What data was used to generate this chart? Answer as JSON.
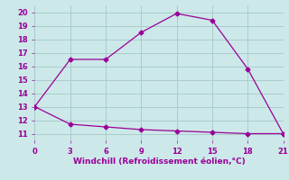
{
  "temp_x": [
    0,
    3,
    6,
    9,
    12,
    15,
    18,
    21
  ],
  "temp_y": [
    13,
    16.5,
    16.5,
    18.5,
    19.9,
    19.4,
    15.8,
    11.0
  ],
  "wind_x": [
    0,
    3,
    6,
    9,
    12,
    15,
    18,
    21
  ],
  "wind_y": [
    13,
    11.7,
    11.5,
    11.3,
    11.2,
    11.1,
    11.0,
    11.0
  ],
  "line_color": "#990099",
  "bg_color": "#cce8e8",
  "grid_color": "#aacccc",
  "xlabel": "Windchill (Refroidissement éolien,°C)",
  "xlim": [
    0,
    21
  ],
  "ylim": [
    10.5,
    20.5
  ],
  "xticks": [
    0,
    3,
    6,
    9,
    12,
    15,
    18,
    21
  ],
  "yticks": [
    11,
    12,
    13,
    14,
    15,
    16,
    17,
    18,
    19,
    20
  ],
  "xlabel_color": "#990099",
  "tick_color": "#990099",
  "marker": "D",
  "markersize": 2.5,
  "linewidth": 0.9
}
